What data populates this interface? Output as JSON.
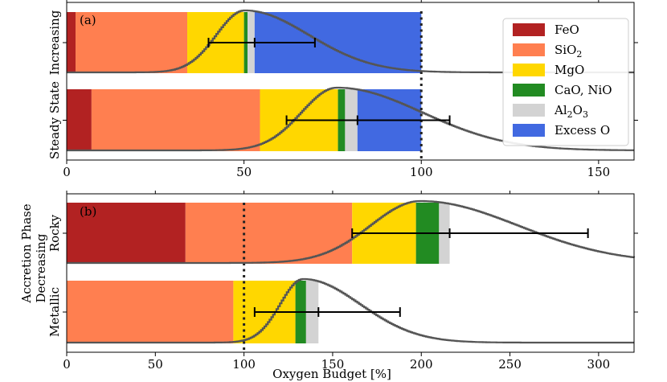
{
  "chart_data": {
    "type": "bar",
    "subtype": "stacked-horizontal-bar-with-distribution-curve",
    "xlabel": "Oxygen Budget [%]",
    "ylabel_outer": "Accretion Phase",
    "legend": {
      "placement": "top-right",
      "entries": [
        {
          "name": "FeO",
          "formula": "FeO",
          "color": "#b22222"
        },
        {
          "name": "SiO2",
          "formula": "SiO",
          "sub": "2",
          "color": "#ff7f50"
        },
        {
          "name": "MgO",
          "formula": "MgO",
          "color": "#ffd700"
        },
        {
          "name": "CaO, NiO",
          "formula": "CaO, NiO",
          "color": "#228b22"
        },
        {
          "name": "Al2O3",
          "formula": "Al",
          "sub": "2",
          "formula2": "O",
          "sub2": "3",
          "color": "#d3d3d3"
        },
        {
          "name": "Excess O",
          "formula": "Excess O",
          "color": "#4169e1"
        }
      ]
    },
    "panels": [
      {
        "tag": "(a)",
        "group_label": "",
        "xlim": [
          0,
          160
        ],
        "xticks": [
          0,
          50,
          100,
          150
        ],
        "reference_line": 100,
        "bars": [
          {
            "label": "Increasing",
            "segments": [
              {
                "component": "FeO",
                "start": 0,
                "end": 2.5
              },
              {
                "component": "SiO2",
                "start": 2.5,
                "end": 34
              },
              {
                "component": "MgO",
                "start": 34,
                "end": 50
              },
              {
                "component": "CaO, NiO",
                "start": 50,
                "end": 51
              },
              {
                "component": "Al2O3",
                "start": 51,
                "end": 53
              },
              {
                "component": "Excess O",
                "start": 53,
                "end": 100
              }
            ],
            "errorbar": {
              "low": 40,
              "center": 53,
              "high": 70
            },
            "curve": {
              "peak": 50,
              "sigma_left": 8,
              "sigma_right": 18
            }
          },
          {
            "label": "Steady State",
            "segments": [
              {
                "component": "FeO",
                "start": 0,
                "end": 7
              },
              {
                "component": "SiO2",
                "start": 7,
                "end": 54.5
              },
              {
                "component": "MgO",
                "start": 54.5,
                "end": 76.5
              },
              {
                "component": "CaO, NiO",
                "start": 76.5,
                "end": 78.5
              },
              {
                "component": "Al2O3",
                "start": 78.5,
                "end": 82
              },
              {
                "component": "Excess O",
                "start": 82,
                "end": 100
              }
            ],
            "errorbar": {
              "low": 62,
              "center": 82,
              "high": 108
            },
            "curve": {
              "peak": 76,
              "sigma_left": 10,
              "sigma_right": 24
            }
          }
        ]
      },
      {
        "tag": "(b)",
        "group_label": "Decreasing",
        "xlim": [
          0,
          320
        ],
        "xticks": [
          0,
          50,
          100,
          150,
          200,
          250,
          300
        ],
        "reference_line": 100,
        "bars": [
          {
            "label": "Rocky",
            "segments": [
              {
                "component": "FeO",
                "start": 0,
                "end": 67
              },
              {
                "component": "SiO2",
                "start": 67,
                "end": 161
              },
              {
                "component": "MgO",
                "start": 161,
                "end": 197
              },
              {
                "component": "CaO, NiO",
                "start": 197,
                "end": 210
              },
              {
                "component": "Al2O3",
                "start": 210,
                "end": 216
              }
            ],
            "errorbar": {
              "low": 161,
              "center": 216,
              "high": 294
            },
            "curve": {
              "peak": 199,
              "sigma_left": 28,
              "sigma_right": 55
            }
          },
          {
            "label": "Metallic",
            "segments": [
              {
                "component": "SiO2",
                "start": 0,
                "end": 94
              },
              {
                "component": "MgO",
                "start": 94,
                "end": 129
              },
              {
                "component": "CaO, NiO",
                "start": 129,
                "end": 135
              },
              {
                "component": "Al2O3",
                "start": 135,
                "end": 142
              }
            ],
            "errorbar": {
              "low": 106,
              "center": 142,
              "high": 188
            },
            "curve": {
              "peak": 133,
              "sigma_left": 13,
              "sigma_right": 32
            }
          }
        ]
      }
    ]
  }
}
